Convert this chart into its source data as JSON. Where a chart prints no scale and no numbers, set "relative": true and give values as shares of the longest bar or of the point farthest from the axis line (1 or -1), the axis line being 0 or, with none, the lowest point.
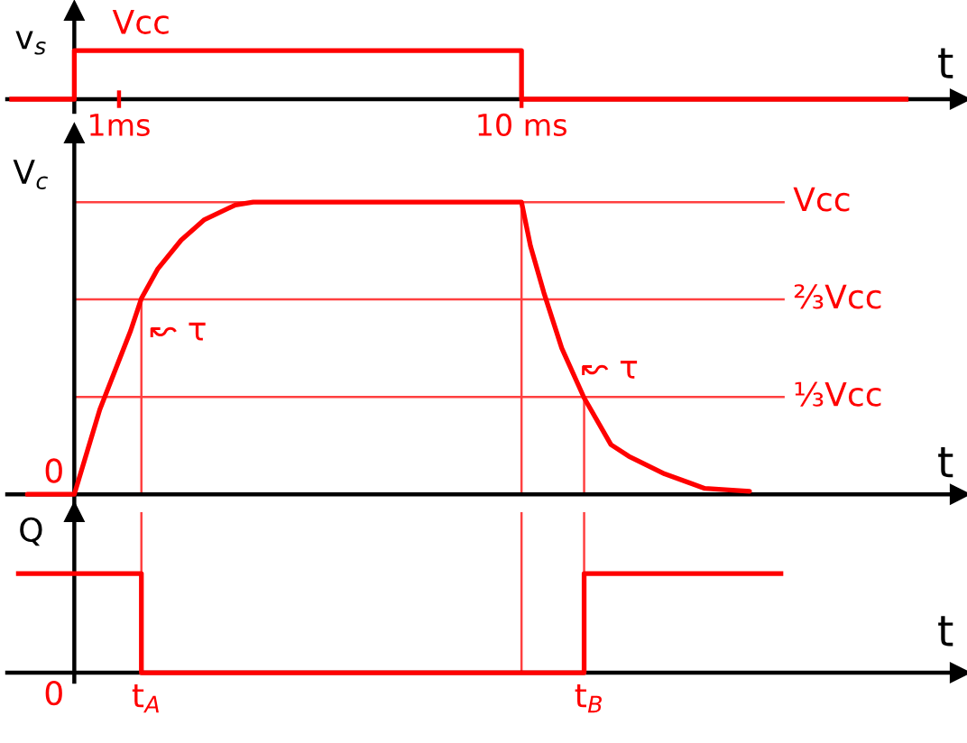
{
  "chart_data": [
    {
      "type": "step",
      "ylabel": "v$_{s}$",
      "xlabel": "t",
      "relative": true,
      "xlim": [
        -1.5,
        19.8
      ],
      "xticks": [
        {
          "value": 1,
          "label": "1ms"
        },
        {
          "value": 10,
          "label": "10 ms"
        }
      ],
      "series": [
        {
          "color": "#ff0000",
          "x": [
            -1.4,
            0,
            10,
            18.6
          ],
          "values": [
            0,
            1,
            0,
            0
          ]
        }
      ],
      "annotations": [
        {
          "text": "Vcc",
          "x": 0.85,
          "y": 1
        }
      ]
    },
    {
      "type": "line",
      "ylabel": "V$_{c}$",
      "xlabel": "t",
      "relative": true,
      "xlim": [
        -1.5,
        19.8
      ],
      "tick_labels": false,
      "series": [
        {
          "color": "#ff0000",
          "x": [
            -1.05,
            0,
            0.57,
            1.26,
            1.5,
            1.86,
            2.39,
            2.91,
            3.6,
            4.0,
            6,
            8,
            10,
            10.2,
            10.5,
            10.9,
            11.4,
            12.0,
            12.4,
            13.2,
            14.1,
            15.1
          ],
          "values": [
            0,
            0,
            0.29,
            0.56,
            0.67,
            0.77,
            0.87,
            0.94,
            0.99,
            1,
            1,
            1,
            1,
            0.85,
            0.69,
            0.5,
            0.33,
            0.17,
            0.13,
            0.07,
            0.02,
            0.01
          ]
        }
      ],
      "ref_lines": [
        {
          "axis": "y",
          "value": 1,
          "label": "Vcc",
          "color": "#ff4040"
        },
        {
          "axis": "y",
          "value": 0.667,
          "label": "⅔Vcc",
          "color": "#ff4040"
        },
        {
          "axis": "y",
          "value": 0.333,
          "label": "⅓Vcc",
          "color": "#ff4040"
        },
        {
          "axis": "x",
          "value": 1.5,
          "color": "#ff4040"
        },
        {
          "axis": "x",
          "value": 10,
          "color": "#ff4040"
        },
        {
          "axis": "x",
          "value": 11.4,
          "color": "#ff4040"
        }
      ],
      "annotations": [
        {
          "text": "0",
          "x": 0,
          "y": 0
        },
        {
          "text": "↜ τ",
          "x": 1.35,
          "y": 0.6
        },
        {
          "text": "↜ τ",
          "x": 11.0,
          "y": 0.47
        }
      ]
    },
    {
      "type": "step",
      "ylabel": "Q",
      "xlabel": "t",
      "relative": true,
      "xlim": [
        -1.5,
        19.8
      ],
      "tick_labels": false,
      "series": [
        {
          "color": "#ff0000",
          "x": [
            -1.25,
            1.5,
            11.4,
            15.8
          ],
          "values": [
            1,
            0,
            1,
            1
          ]
        }
      ],
      "ref_lines": [
        {
          "axis": "x",
          "value": 1.5,
          "label": "t$_{A}$",
          "color": "#ff4040"
        },
        {
          "axis": "x",
          "value": 10,
          "color": "#ff4040"
        },
        {
          "axis": "x",
          "value": 11.4,
          "label": "t$_{B}$",
          "color": "#ff4040"
        }
      ],
      "annotations": [
        "0"
      ]
    }
  ]
}
